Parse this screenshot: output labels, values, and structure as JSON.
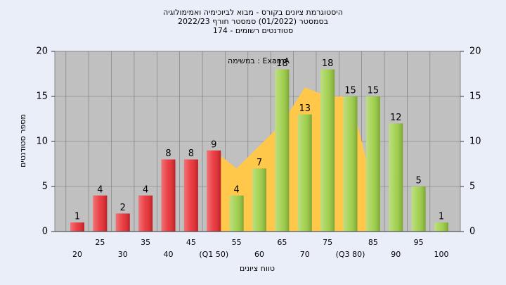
{
  "chart_data": {
    "type": "bar",
    "title": "היסטוגרמת ציונים בקורס - מבוא לביוכימיה ואמימולוגיה",
    "subtitle": [
      "בסמסטר (01/2022) סמסטר חורף 2022/23",
      "סטודנטים רשומים - 174"
    ],
    "annotation": "במשימה : ExamA",
    "x_label": "טווח ציונים",
    "y_label": "מספר סטודנטים",
    "categories": [
      "20",
      "25",
      "30",
      "35",
      "40",
      "45",
      "(Q1 50)",
      "55",
      "60",
      "65",
      "70",
      "75",
      "(Q3 80)",
      "85",
      "90",
      "95",
      "100"
    ],
    "series": [
      {
        "color": "#ffc84a",
        "kind": "area",
        "values": [
          null,
          null,
          null,
          null,
          null,
          null,
          9,
          7,
          9.5,
          12,
          16,
          15,
          15,
          5,
          null,
          null,
          null
        ]
      },
      {
        "colors": [
          "#e8282e",
          "#e8282e",
          "#e8282e",
          "#e8282e",
          "#e8282e",
          "#e8282e",
          "#e8282e",
          "#9acd40",
          "#9acd40",
          "#9acd40",
          "#9acd40",
          "#9acd40",
          "#9acd40",
          "#9acd40",
          "#9acd40",
          "#9acd40",
          "#9acd40"
        ],
        "values": [
          1,
          4,
          2,
          4,
          8,
          8,
          9,
          4,
          7,
          18,
          13,
          18,
          15,
          15,
          12,
          5,
          1
        ]
      }
    ],
    "ylim": [
      0,
      20
    ],
    "yticks": [
      0,
      5,
      10,
      15,
      20
    ],
    "y2lim": [
      0,
      20
    ],
    "y2ticks": [
      0,
      5,
      10,
      15,
      20
    ],
    "grid": true
  }
}
